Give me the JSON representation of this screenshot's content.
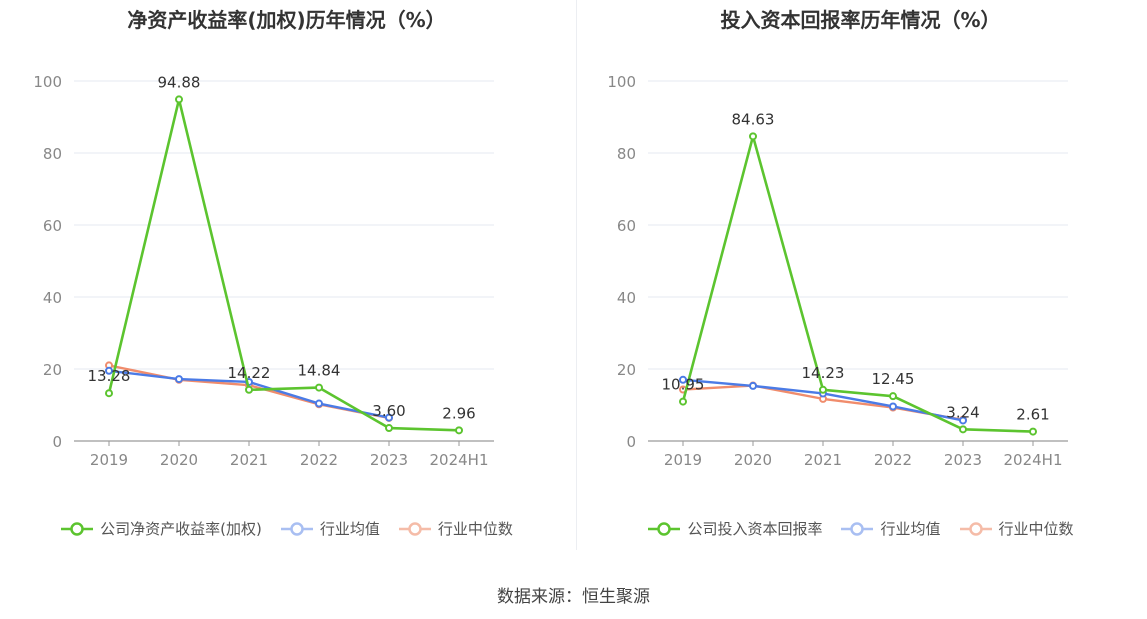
{
  "source_label": "数据来源：恒生聚源",
  "colors": {
    "company": "#5cc42f",
    "avg": "#4b7be6",
    "median": "#f08c6c",
    "grid": "#e6e9f2",
    "axis": "#888888"
  },
  "chart_data": [
    {
      "type": "line",
      "title": "净资产收益率(加权)历年情况（%）",
      "categories": [
        "2019",
        "2020",
        "2021",
        "2022",
        "2023",
        "2024H1"
      ],
      "ylim": [
        0,
        100
      ],
      "yticks": [
        0,
        20,
        40,
        60,
        80,
        100
      ],
      "grid": true,
      "legend_position": "bottom",
      "series": [
        {
          "name": "公司净资产收益率(加权)",
          "key": "company",
          "values": [
            13.28,
            94.88,
            14.22,
            14.84,
            3.6,
            2.96
          ],
          "labels": [
            "13.28",
            "94.88",
            "14.22",
            "14.84",
            "3.60",
            "2.96"
          ]
        },
        {
          "name": "行业均值",
          "key": "avg",
          "values": [
            19.5,
            17.2,
            16.4,
            10.4,
            6.5,
            null
          ]
        },
        {
          "name": "行业中位数",
          "key": "median",
          "values": [
            21.0,
            17.0,
            15.5,
            10.2,
            6.4,
            null
          ]
        }
      ]
    },
    {
      "type": "line",
      "title": "投入资本回报率历年情况（%）",
      "categories": [
        "2019",
        "2020",
        "2021",
        "2022",
        "2023",
        "2024H1"
      ],
      "ylim": [
        0,
        100
      ],
      "yticks": [
        0,
        20,
        40,
        60,
        80,
        100
      ],
      "grid": true,
      "legend_position": "bottom",
      "series": [
        {
          "name": "公司投入资本回报率",
          "key": "company",
          "values": [
            10.95,
            84.63,
            14.23,
            12.45,
            3.24,
            2.61
          ],
          "labels": [
            "10.95",
            "84.63",
            "14.23",
            "12.45",
            "3.24",
            "2.61"
          ]
        },
        {
          "name": "行业均值",
          "key": "avg",
          "values": [
            17.0,
            15.3,
            13.2,
            9.6,
            5.7,
            null
          ]
        },
        {
          "name": "行业中位数",
          "key": "median",
          "values": [
            14.3,
            15.4,
            11.7,
            9.3,
            5.9,
            null
          ]
        }
      ]
    }
  ]
}
